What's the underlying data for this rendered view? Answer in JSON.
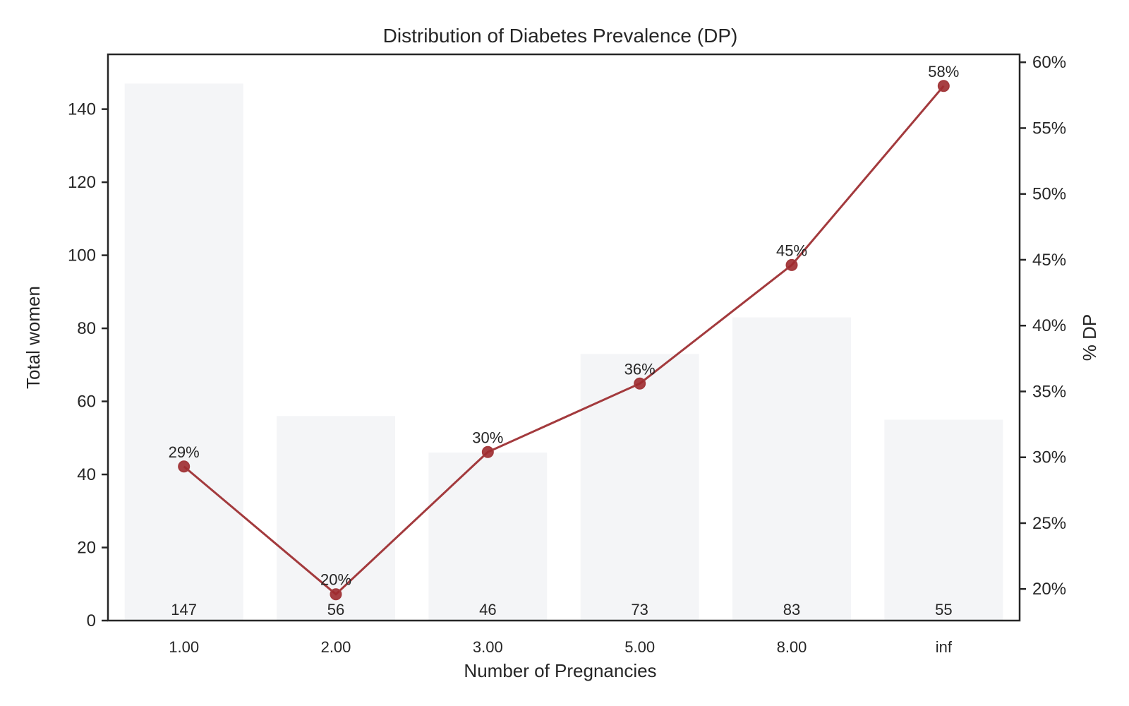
{
  "chart_data": {
    "type": "bar",
    "title": "Distribution of Diabetes Prevalence (DP)",
    "xlabel": "Number of Pregnancies",
    "ylabel": "Total women",
    "y2label": "% DP",
    "categories": [
      "1.00",
      "2.00",
      "3.00",
      "5.00",
      "8.00",
      "inf"
    ],
    "bars": {
      "values": [
        147,
        56,
        46,
        73,
        83,
        55
      ],
      "labels": [
        "147",
        "56",
        "46",
        "73",
        "83",
        "55"
      ],
      "color": "#f4f5f7"
    },
    "line": {
      "values": [
        29.3,
        19.6,
        30.4,
        35.6,
        44.6,
        58.2
      ],
      "labels": [
        "29%",
        "20%",
        "30%",
        "36%",
        "45%",
        "58%"
      ],
      "color": "#a33a3d",
      "marker_color": "#9e2b2f"
    },
    "ylim": [
      0,
      155
    ],
    "yticks": [
      0,
      20,
      40,
      60,
      80,
      100,
      120,
      140
    ],
    "ytick_labels": [
      "0",
      "20",
      "40",
      "60",
      "80",
      "100",
      "120",
      "140"
    ],
    "y2lim": [
      17.6,
      60.6
    ],
    "y2ticks": [
      20,
      25,
      30,
      35,
      40,
      45,
      50,
      55,
      60
    ],
    "y2tick_labels": [
      "20%",
      "25%",
      "30%",
      "35%",
      "40%",
      "45%",
      "50%",
      "55%",
      "60%"
    ],
    "grid": false
  }
}
